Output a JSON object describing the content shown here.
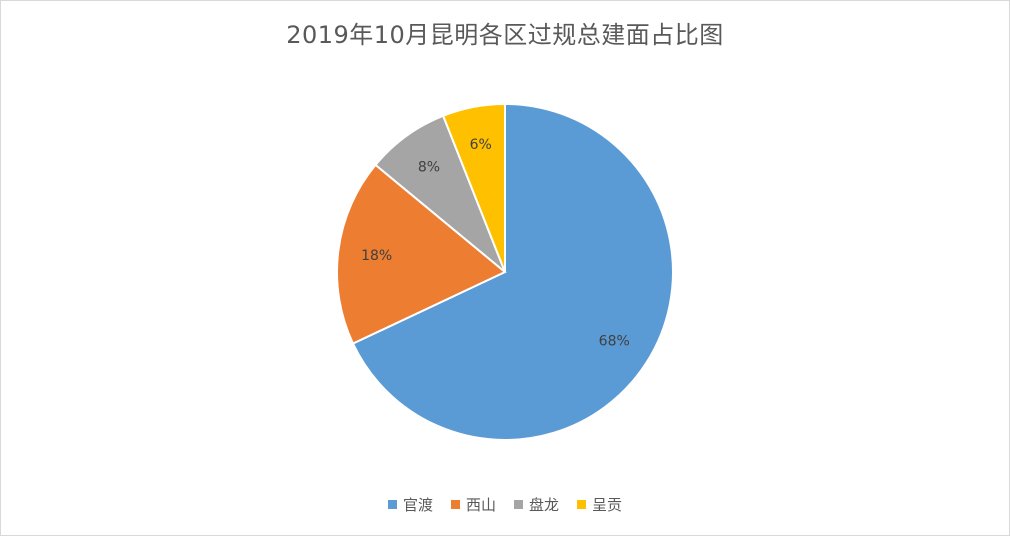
{
  "chart_data": {
    "type": "pie",
    "title": "2019年10月昆明各区过规总建面占比图",
    "categories": [
      "官渡",
      "西山",
      "盘龙",
      "呈贡"
    ],
    "values": [
      68,
      18,
      8,
      6
    ],
    "labels": [
      "68%",
      "18%",
      "8%",
      "6%"
    ],
    "colors": [
      "#5B9BD5",
      "#ED7D31",
      "#A5A5A5",
      "#FFC000"
    ],
    "legend_position": "bottom"
  }
}
